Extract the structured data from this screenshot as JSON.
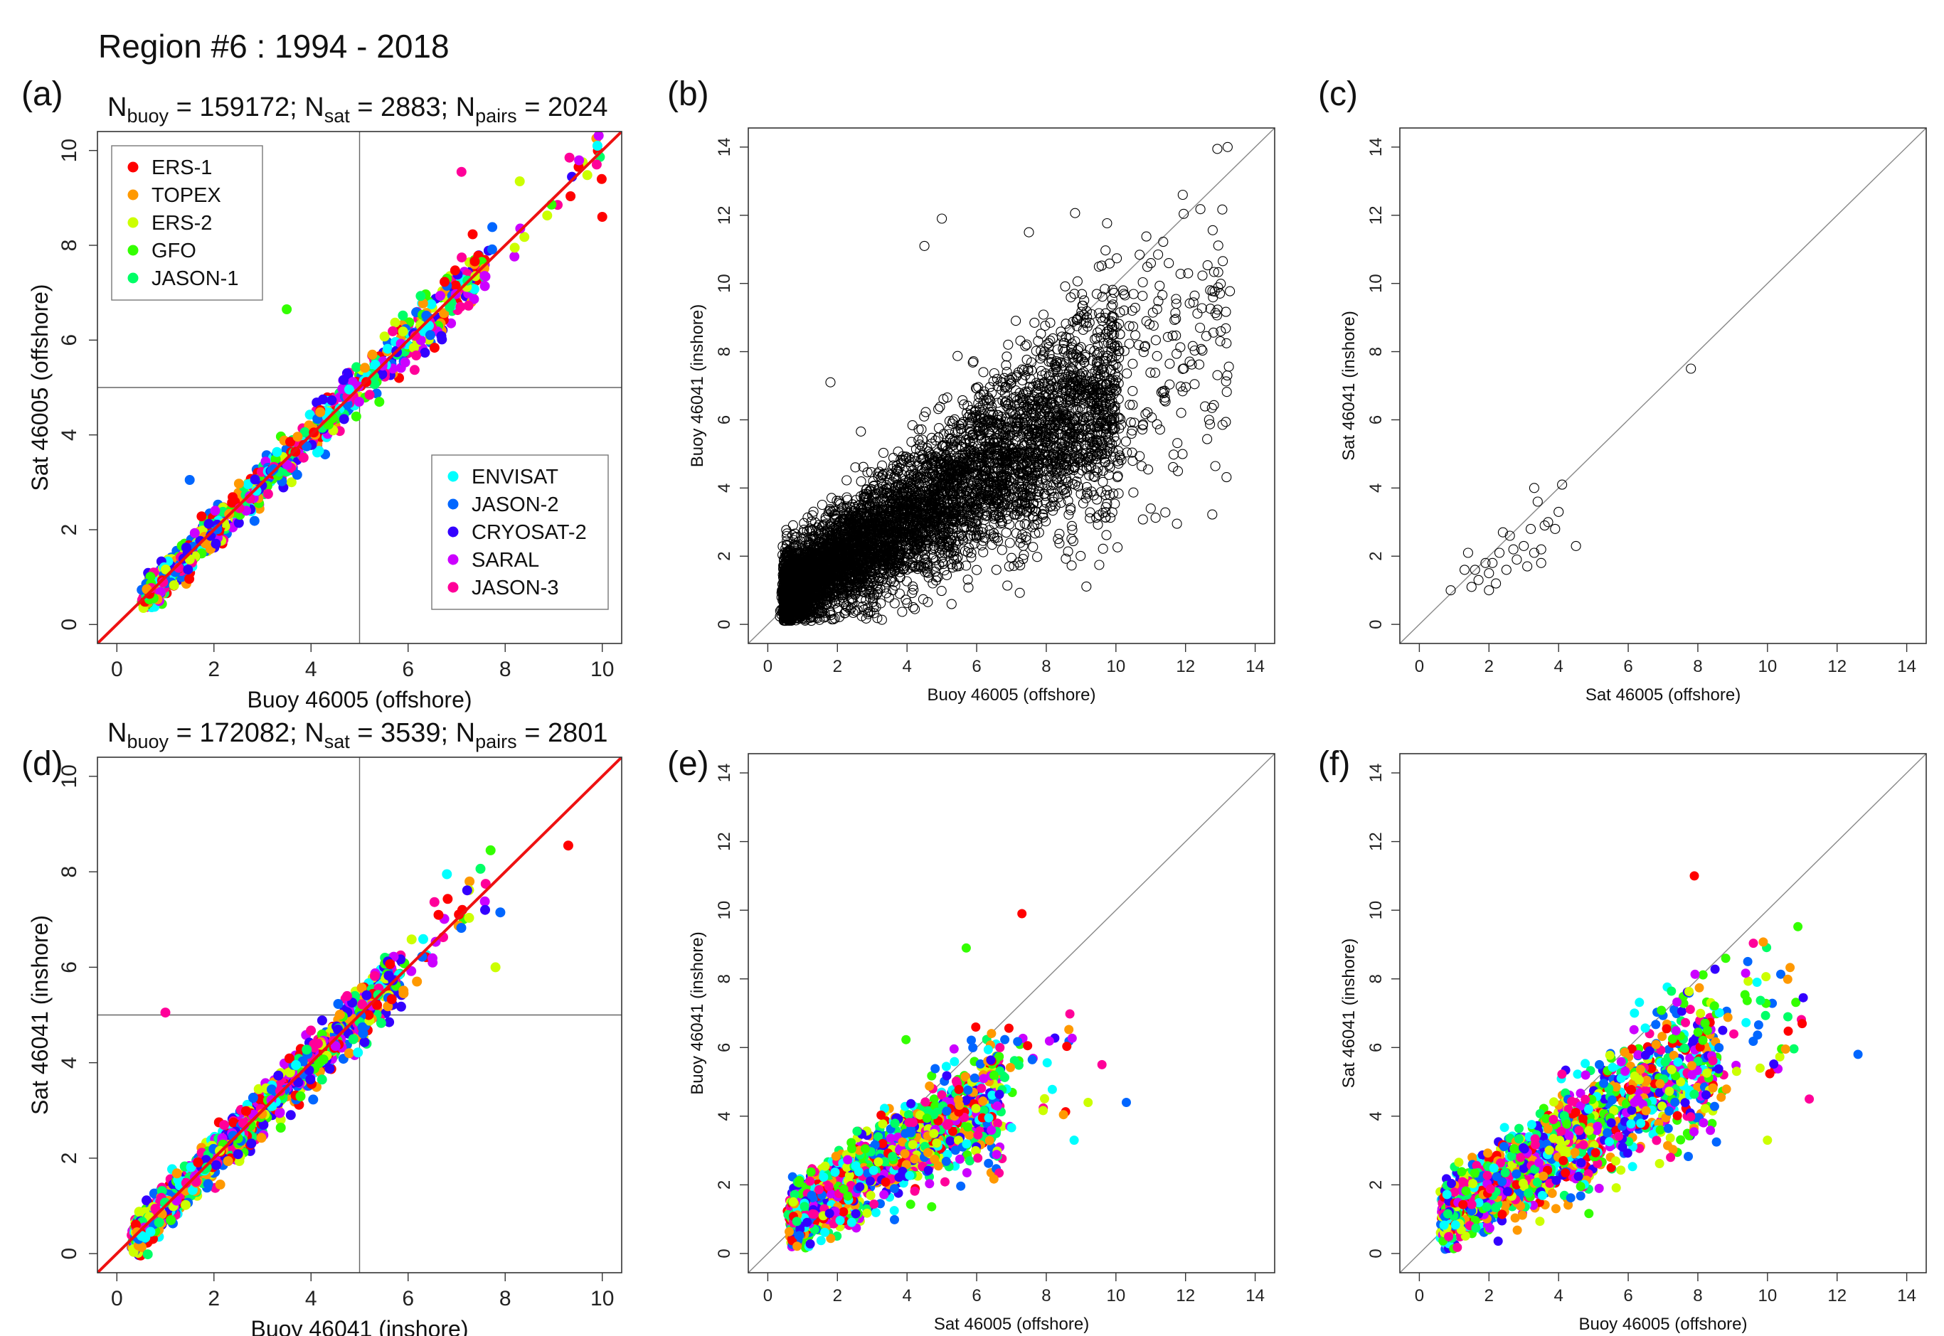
{
  "page_title": "Region #6 :  1994 - 2018",
  "legend_top": [
    {
      "name": "ERS-1",
      "color": "#ff0000"
    },
    {
      "name": "TOPEX",
      "color": "#ff9900"
    },
    {
      "name": "ERS-2",
      "color": "#ccff00"
    },
    {
      "name": "GFO",
      "color": "#33ff00"
    },
    {
      "name": "JASON-1",
      "color": "#00ff66"
    }
  ],
  "legend_bottom": [
    {
      "name": "ENVISAT",
      "color": "#00ffff"
    },
    {
      "name": "JASON-2",
      "color": "#0066ff"
    },
    {
      "name": "CRYOSAT-2",
      "color": "#3300ff"
    },
    {
      "name": "SARAL",
      "color": "#cc00ff"
    },
    {
      "name": "JASON-3",
      "color": "#ff0099"
    }
  ],
  "chart_data": [
    {
      "id": "a",
      "panel_label": "(a)",
      "type": "scatter",
      "stats": {
        "n_buoy": "159172",
        "n_sat": "2883",
        "n_pairs": "2024"
      },
      "xlabel": "Buoy 46005 (offshore)",
      "ylabel": "Sat 46005 (offshore)",
      "xlim": [
        -0.4,
        10.4
      ],
      "ylim": [
        -0.4,
        10.4
      ],
      "xticks": [
        0,
        2,
        4,
        6,
        8,
        10
      ],
      "yticks": [
        0,
        2,
        4,
        6,
        8,
        10
      ],
      "ref_lines": {
        "x": 5,
        "y": 5
      },
      "fit_line": {
        "slope": 1.0,
        "intercept": 0.0,
        "color": "#ee1111"
      },
      "legend": true,
      "colored": true,
      "cloud": {
        "n": 1000,
        "x_range": [
          0.6,
          10.0
        ],
        "spread": 0.28,
        "seed": 11
      },
      "outliers": [
        [
          10.0,
          8.6
        ],
        [
          3.5,
          6.65
        ],
        [
          1.5,
          3.05
        ],
        [
          7.1,
          9.55
        ],
        [
          8.3,
          9.35
        ],
        [
          9.9,
          10.1
        ]
      ]
    },
    {
      "id": "b",
      "panel_label": "(b)",
      "type": "scatter",
      "xlabel": "Buoy 46005 (offshore)",
      "ylabel": "Buoy 46041 (inshore)",
      "xlim": [
        -0.56,
        14.56
      ],
      "ylim": [
        -0.56,
        14.56
      ],
      "xticks": [
        0,
        2,
        4,
        6,
        8,
        10,
        12,
        14
      ],
      "yticks": [
        0,
        2,
        4,
        6,
        8,
        10,
        12,
        14
      ],
      "marker": "open-circle",
      "colored": false,
      "cloud": {
        "n": 6000,
        "x_range": [
          0.5,
          13.3
        ],
        "spread": 1.1,
        "seed": 23
      },
      "outliers": [
        [
          5.0,
          11.9
        ],
        [
          4.5,
          11.1
        ],
        [
          7.5,
          11.5
        ],
        [
          1.8,
          7.1
        ],
        [
          13.2,
          7.3
        ]
      ]
    },
    {
      "id": "c",
      "panel_label": "(c)",
      "type": "scatter",
      "xlabel": "Sat 46005 (offshore)",
      "ylabel": "Sat 46041 (inshore)",
      "xlim": [
        -0.56,
        14.56
      ],
      "ylim": [
        -0.56,
        14.56
      ],
      "xticks": [
        0,
        2,
        4,
        6,
        8,
        10,
        12,
        14
      ],
      "yticks": [
        0,
        2,
        4,
        6,
        8,
        10,
        12,
        14
      ],
      "marker": "open-circle",
      "colored": false,
      "points": [
        [
          0.9,
          1.0
        ],
        [
          1.3,
          1.6
        ],
        [
          1.4,
          2.1
        ],
        [
          1.5,
          1.1
        ],
        [
          1.6,
          1.6
        ],
        [
          1.7,
          1.3
        ],
        [
          1.9,
          1.8
        ],
        [
          2.0,
          1.0
        ],
        [
          2.0,
          1.5
        ],
        [
          2.1,
          1.8
        ],
        [
          2.2,
          1.2
        ],
        [
          2.3,
          2.1
        ],
        [
          2.4,
          2.7
        ],
        [
          2.5,
          1.6
        ],
        [
          2.6,
          2.6
        ],
        [
          2.7,
          2.2
        ],
        [
          2.8,
          1.9
        ],
        [
          3.0,
          2.3
        ],
        [
          3.1,
          1.7
        ],
        [
          3.2,
          2.8
        ],
        [
          3.3,
          2.1
        ],
        [
          3.3,
          4.0
        ],
        [
          3.4,
          3.6
        ],
        [
          3.5,
          2.2
        ],
        [
          3.5,
          1.8
        ],
        [
          3.6,
          2.9
        ],
        [
          3.7,
          3.0
        ],
        [
          3.9,
          2.8
        ],
        [
          4.0,
          3.3
        ],
        [
          4.1,
          4.1
        ],
        [
          4.5,
          2.3
        ],
        [
          7.8,
          7.5
        ]
      ]
    },
    {
      "id": "d",
      "panel_label": "(d)",
      "type": "scatter",
      "stats": {
        "n_buoy": "172082",
        "n_sat": "3539",
        "n_pairs": "2801"
      },
      "xlabel": "Buoy 46041 (inshore)",
      "ylabel": "Sat 46041 (inshore)",
      "xlim": [
        -0.4,
        10.4
      ],
      "ylim": [
        -0.4,
        10.4
      ],
      "xticks": [
        0,
        2,
        4,
        6,
        8,
        10
      ],
      "yticks": [
        0,
        2,
        4,
        6,
        8,
        10
      ],
      "ref_lines": {
        "x": 5,
        "y": 5
      },
      "fit_line": {
        "slope": 1.0,
        "intercept": 0.0,
        "color": "#ee1111"
      },
      "colored": true,
      "cloud": {
        "n": 1400,
        "x_range": [
          0.4,
          7.6
        ],
        "spread": 0.32,
        "seed": 37
      },
      "outliers": [
        [
          9.3,
          8.55
        ],
        [
          7.7,
          8.45
        ],
        [
          7.9,
          7.15
        ],
        [
          1.0,
          5.05
        ],
        [
          7.8,
          6.0
        ],
        [
          6.8,
          7.95
        ]
      ]
    },
    {
      "id": "e",
      "panel_label": "(e)",
      "type": "scatter",
      "xlabel": "Sat 46005 (offshore)",
      "ylabel": "Buoy 46041 (inshore)",
      "xlim": [
        -0.56,
        14.56
      ],
      "ylim": [
        -0.56,
        14.56
      ],
      "xticks": [
        0,
        2,
        4,
        6,
        8,
        10,
        12,
        14
      ],
      "yticks": [
        0,
        2,
        4,
        6,
        8,
        10,
        12,
        14
      ],
      "colored": true,
      "cloud": {
        "n": 1800,
        "x_range": [
          0.7,
          8.8
        ],
        "spread": 0.75,
        "seed": 53
      },
      "outliers": [
        [
          7.3,
          9.9
        ],
        [
          5.7,
          8.9
        ],
        [
          10.3,
          4.4
        ],
        [
          9.6,
          5.5
        ],
        [
          9.2,
          4.4
        ],
        [
          8.8,
          3.3
        ]
      ]
    },
    {
      "id": "f",
      "panel_label": "(f)",
      "type": "scatter",
      "xlabel": "Buoy 46005 (offshore)",
      "ylabel": "Sat 46041 (inshore)",
      "xlim": [
        -0.56,
        14.56
      ],
      "ylim": [
        -0.56,
        14.56
      ],
      "xticks": [
        0,
        2,
        4,
        6,
        8,
        10,
        12,
        14
      ],
      "yticks": [
        0,
        2,
        4,
        6,
        8,
        10,
        12,
        14
      ],
      "colored": true,
      "cloud": {
        "n": 1900,
        "x_range": [
          0.7,
          11.2
        ],
        "spread": 0.8,
        "seed": 71
      },
      "outliers": [
        [
          7.9,
          11.0
        ],
        [
          8.8,
          8.6
        ],
        [
          12.6,
          5.8
        ],
        [
          11.2,
          4.5
        ],
        [
          10.0,
          3.3
        ],
        [
          9.7,
          7.9
        ]
      ]
    }
  ]
}
